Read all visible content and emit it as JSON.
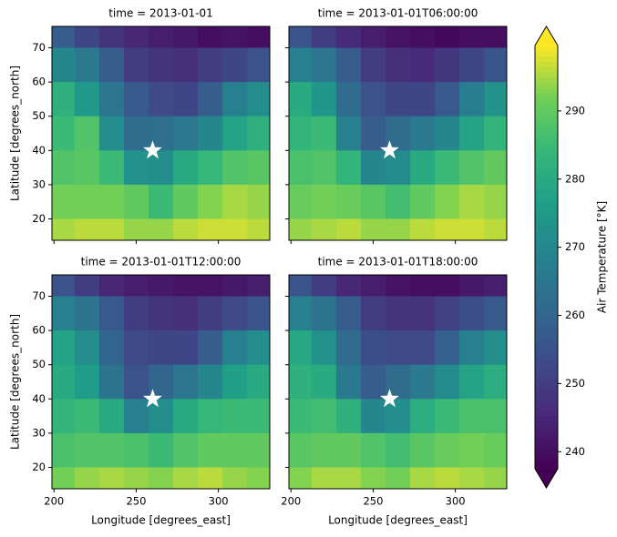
{
  "chart_data": [
    {
      "type": "heatmap",
      "title": "time = 2013-01-01",
      "ylabel": "Latitude [degrees_north]",
      "x": [
        205,
        220,
        235,
        250,
        265,
        280,
        295,
        310,
        325
      ],
      "y": [
        75,
        65,
        55,
        45,
        35,
        25,
        15
      ],
      "values": [
        [
          258,
          252,
          248,
          245,
          243,
          242,
          240,
          241,
          240
        ],
        [
          270,
          266,
          258,
          250,
          248,
          247,
          250,
          252,
          255
        ],
        [
          282,
          275,
          265,
          257,
          253,
          252,
          258,
          268,
          272
        ],
        [
          285,
          288,
          272,
          262,
          263,
          266,
          270,
          278,
          282
        ],
        [
          288,
          289,
          285,
          273,
          272,
          280,
          284,
          288,
          289
        ],
        [
          292,
          292,
          292,
          290,
          285,
          290,
          293,
          295,
          294
        ],
        [
          295,
          296,
          296,
          294,
          294,
          296,
          297,
          297,
          296
        ]
      ],
      "points": {
        "x": [
          260
        ],
        "y": [
          40
        ],
        "color": "#ffffff"
      },
      "xlim": [
        198.75,
        331.25
      ],
      "ylim": [
        13.75,
        76.25
      ],
      "xticks": [
        200,
        250,
        300
      ],
      "yticks": [
        20,
        30,
        40,
        50,
        60,
        70
      ]
    },
    {
      "type": "heatmap",
      "title": "time = 2013-01-01T06:00:00",
      "x": [
        205,
        220,
        235,
        250,
        265,
        280,
        295,
        310,
        325
      ],
      "y": [
        75,
        65,
        55,
        45,
        35,
        25,
        15
      ],
      "values": [
        [
          256,
          250,
          246,
          243,
          241,
          240,
          239,
          240,
          240
        ],
        [
          268,
          265,
          258,
          250,
          247,
          246,
          249,
          252,
          256
        ],
        [
          280,
          274,
          262,
          255,
          252,
          252,
          257,
          267,
          273
        ],
        [
          283,
          285,
          268,
          258,
          262,
          266,
          270,
          278,
          283
        ],
        [
          287,
          288,
          283,
          270,
          271,
          280,
          285,
          288,
          290
        ],
        [
          291,
          292,
          291,
          289,
          286,
          290,
          293,
          295,
          294
        ],
        [
          294,
          295,
          296,
          294,
          294,
          296,
          297,
          297,
          296
        ]
      ],
      "points": {
        "x": [
          260
        ],
        "y": [
          40
        ],
        "color": "#ffffff"
      },
      "xlim": [
        198.75,
        331.25
      ],
      "ylim": [
        13.75,
        76.25
      ],
      "xticks": [
        200,
        250,
        300
      ],
      "yticks": [
        20,
        30,
        40,
        50,
        60,
        70
      ]
    },
    {
      "type": "heatmap",
      "title": "time = 2013-01-01T12:00:00",
      "xlabel": "Longitude [degrees_east]",
      "ylabel": "Latitude [degrees_north]",
      "x": [
        205,
        220,
        235,
        250,
        265,
        280,
        295,
        310,
        325
      ],
      "y": [
        75,
        65,
        55,
        45,
        35,
        25,
        15
      ],
      "values": [
        [
          255,
          250,
          245,
          243,
          242,
          241,
          241,
          242,
          243
        ],
        [
          268,
          264,
          257,
          250,
          248,
          247,
          250,
          253,
          256
        ],
        [
          278,
          272,
          260,
          253,
          252,
          252,
          258,
          268,
          272
        ],
        [
          280,
          276,
          264,
          255,
          260,
          265,
          270,
          277,
          280
        ],
        [
          283,
          285,
          280,
          268,
          272,
          280,
          284,
          285,
          285
        ],
        [
          287,
          288,
          288,
          287,
          285,
          288,
          290,
          290,
          290
        ],
        [
          292,
          294,
          295,
          294,
          293,
          295,
          296,
          294,
          293
        ]
      ],
      "points": {
        "x": [
          260
        ],
        "y": [
          40
        ],
        "color": "#ffffff"
      },
      "xlim": [
        198.75,
        331.25
      ],
      "ylim": [
        13.75,
        76.25
      ],
      "xticks": [
        200,
        250,
        300
      ],
      "yticks": [
        20,
        30,
        40,
        50,
        60,
        70
      ]
    },
    {
      "type": "heatmap",
      "title": "time = 2013-01-01T18:00:00",
      "xlabel": "Longitude [degrees_east]",
      "x": [
        205,
        220,
        235,
        250,
        265,
        280,
        295,
        310,
        325
      ],
      "y": [
        75,
        65,
        55,
        45,
        35,
        25,
        15
      ],
      "values": [
        [
          256,
          250,
          245,
          243,
          241,
          240,
          240,
          242,
          243
        ],
        [
          268,
          264,
          258,
          250,
          248,
          248,
          251,
          254,
          257
        ],
        [
          279,
          273,
          262,
          254,
          253,
          253,
          259,
          268,
          272
        ],
        [
          282,
          280,
          266,
          258,
          262,
          266,
          271,
          278,
          281
        ],
        [
          285,
          286,
          282,
          270,
          272,
          281,
          285,
          287,
          287
        ],
        [
          289,
          290,
          290,
          288,
          286,
          289,
          291,
          292,
          291
        ],
        [
          293,
          295,
          295,
          293,
          292,
          295,
          296,
          295,
          294
        ]
      ],
      "points": {
        "x": [
          260
        ],
        "y": [
          40
        ],
        "color": "#ffffff"
      },
      "xlim": [
        198.75,
        331.25
      ],
      "ylim": [
        13.75,
        76.25
      ],
      "xticks": [
        200,
        250,
        300
      ],
      "yticks": [
        20,
        30,
        40,
        50,
        60,
        70
      ]
    }
  ],
  "colorbar": {
    "label": "Air Temperature [°K]",
    "colormap": "viridis",
    "lim": [
      237.5,
      299.6
    ],
    "ticks": [
      240,
      250,
      260,
      270,
      280,
      290
    ],
    "extend": "both"
  }
}
